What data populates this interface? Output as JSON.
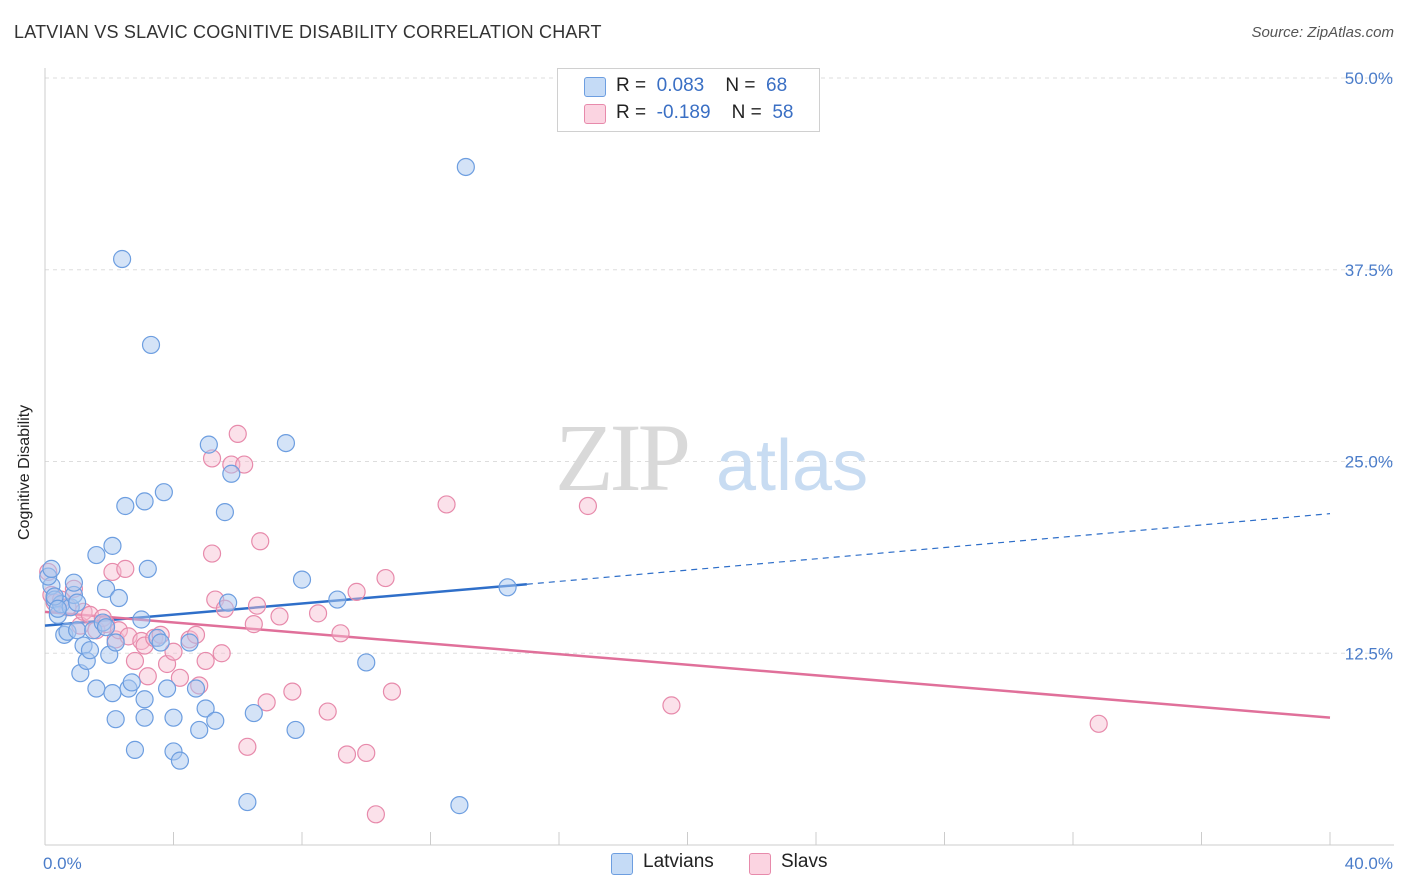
{
  "header": {
    "title": "LATVIAN VS SLAVIC COGNITIVE DISABILITY CORRELATION CHART",
    "source": "Source: ZipAtlas.com"
  },
  "watermark": {
    "zip": "ZIP",
    "atlas": "atlas"
  },
  "legend": {
    "rows": [
      {
        "r_label": "R =",
        "r_value": "0.083",
        "n_label": "N =",
        "n_value": "68",
        "color": "#a9c7f0"
      },
      {
        "r_label": "R =",
        "r_value": "-0.189",
        "n_label": "N =",
        "n_value": "58",
        "color": "#f6bcd0"
      }
    ]
  },
  "bottom_legend": {
    "series1": "Latvians",
    "series2": "Slavs"
  },
  "colors": {
    "latvians_fill": "#a9c7f0",
    "latvians_stroke": "#6d9ee0",
    "latvians_line": "#2f6fc9",
    "slavs_fill": "#f6bcd0",
    "slavs_stroke": "#e78aab",
    "slavs_line": "#e0709a",
    "tick_text": "#4a7cc9",
    "grid": "#dddddd"
  },
  "chart_data": {
    "type": "scatter",
    "title": "LATVIAN VS SLAVIC COGNITIVE DISABILITY CORRELATION CHART",
    "xlabel": "",
    "ylabel": "Cognitive Disability",
    "xlim": [
      0,
      40
    ],
    "ylim": [
      0,
      50
    ],
    "x_ticks": [
      "0.0%",
      "40.0%"
    ],
    "y_ticks": [
      {
        "value": 12.5,
        "label": "12.5%"
      },
      {
        "value": 25.0,
        "label": "25.0%"
      },
      {
        "value": 37.5,
        "label": "37.5%"
      },
      {
        "value": 50.0,
        "label": "50.0%"
      }
    ],
    "grid": true,
    "legend_position": "top-center",
    "series": [
      {
        "name": "Latvians",
        "trend": {
          "x": [
            0,
            15
          ],
          "y": [
            14.3,
            17.0
          ],
          "extended_to": [
            40,
            21.6
          ]
        },
        "points": [
          [
            0.2,
            16.9
          ],
          [
            0.3,
            16.0
          ],
          [
            0.4,
            15.0
          ],
          [
            0.5,
            15.7
          ],
          [
            0.6,
            13.7
          ],
          [
            0.7,
            13.9
          ],
          [
            0.8,
            15.5
          ],
          [
            0.9,
            16.3
          ],
          [
            0.9,
            17.1
          ],
          [
            1.0,
            14.0
          ],
          [
            1.0,
            15.8
          ],
          [
            1.1,
            11.2
          ],
          [
            1.2,
            13.0
          ],
          [
            1.3,
            12.0
          ],
          [
            1.4,
            12.7
          ],
          [
            1.5,
            14.0
          ],
          [
            1.6,
            18.9
          ],
          [
            1.6,
            10.2
          ],
          [
            1.8,
            14.5
          ],
          [
            1.9,
            14.2
          ],
          [
            1.9,
            16.7
          ],
          [
            2.0,
            12.4
          ],
          [
            2.1,
            19.5
          ],
          [
            2.1,
            9.9
          ],
          [
            2.2,
            13.2
          ],
          [
            2.2,
            8.2
          ],
          [
            2.3,
            16.1
          ],
          [
            2.4,
            38.2
          ],
          [
            2.5,
            22.1
          ],
          [
            2.6,
            10.2
          ],
          [
            2.7,
            10.6
          ],
          [
            2.8,
            6.2
          ],
          [
            3.0,
            14.7
          ],
          [
            3.1,
            22.4
          ],
          [
            3.1,
            8.3
          ],
          [
            3.1,
            9.5
          ],
          [
            3.2,
            18.0
          ],
          [
            3.3,
            32.6
          ],
          [
            3.5,
            13.5
          ],
          [
            3.6,
            13.2
          ],
          [
            3.7,
            23.0
          ],
          [
            3.8,
            10.2
          ],
          [
            4.0,
            8.3
          ],
          [
            4.0,
            6.1
          ],
          [
            4.2,
            5.5
          ],
          [
            4.5,
            13.2
          ],
          [
            4.7,
            10.2
          ],
          [
            4.8,
            7.5
          ],
          [
            5.0,
            8.9
          ],
          [
            5.1,
            26.1
          ],
          [
            5.3,
            8.1
          ],
          [
            5.6,
            21.7
          ],
          [
            5.7,
            15.8
          ],
          [
            5.8,
            24.2
          ],
          [
            6.3,
            2.8
          ],
          [
            6.5,
            8.6
          ],
          [
            7.5,
            26.2
          ],
          [
            7.8,
            7.5
          ],
          [
            8.0,
            17.3
          ],
          [
            9.1,
            16.0
          ],
          [
            10.0,
            11.9
          ],
          [
            12.9,
            2.6
          ],
          [
            13.1,
            44.2
          ],
          [
            14.4,
            16.8
          ],
          [
            0.1,
            17.5
          ],
          [
            0.2,
            18.0
          ],
          [
            0.3,
            16.2
          ],
          [
            0.4,
            15.4
          ]
        ]
      },
      {
        "name": "Slavs",
        "trend": {
          "x": [
            0,
            40
          ],
          "y": [
            15.2,
            8.3
          ]
        },
        "points": [
          [
            0.2,
            16.3
          ],
          [
            0.3,
            15.8
          ],
          [
            0.5,
            16.0
          ],
          [
            0.7,
            15.5
          ],
          [
            0.9,
            16.7
          ],
          [
            1.1,
            14.3
          ],
          [
            1.2,
            15.2
          ],
          [
            1.4,
            15.0
          ],
          [
            1.6,
            14.0
          ],
          [
            1.8,
            14.8
          ],
          [
            1.9,
            14.4
          ],
          [
            2.1,
            17.8
          ],
          [
            2.2,
            13.4
          ],
          [
            2.3,
            14.0
          ],
          [
            2.5,
            18.0
          ],
          [
            2.6,
            13.6
          ],
          [
            2.8,
            12.0
          ],
          [
            3.0,
            13.3
          ],
          [
            3.1,
            13.0
          ],
          [
            3.2,
            11.0
          ],
          [
            3.4,
            13.5
          ],
          [
            3.6,
            13.7
          ],
          [
            3.8,
            11.8
          ],
          [
            4.0,
            12.6
          ],
          [
            4.2,
            10.9
          ],
          [
            4.5,
            13.4
          ],
          [
            4.7,
            13.7
          ],
          [
            4.8,
            10.4
          ],
          [
            5.0,
            12.0
          ],
          [
            5.2,
            19.0
          ],
          [
            5.3,
            16.0
          ],
          [
            5.5,
            12.5
          ],
          [
            5.6,
            15.4
          ],
          [
            5.8,
            24.8
          ],
          [
            6.0,
            26.8
          ],
          [
            6.2,
            24.8
          ],
          [
            6.3,
            6.4
          ],
          [
            6.5,
            14.4
          ],
          [
            6.6,
            15.6
          ],
          [
            6.7,
            19.8
          ],
          [
            6.9,
            9.3
          ],
          [
            7.3,
            14.9
          ],
          [
            7.7,
            10.0
          ],
          [
            8.5,
            15.1
          ],
          [
            8.8,
            8.7
          ],
          [
            9.2,
            13.8
          ],
          [
            9.4,
            5.9
          ],
          [
            9.7,
            16.5
          ],
          [
            10.0,
            6.0
          ],
          [
            10.3,
            2.0
          ],
          [
            10.6,
            17.4
          ],
          [
            10.8,
            10.0
          ],
          [
            12.5,
            22.2
          ],
          [
            16.9,
            22.1
          ],
          [
            19.5,
            9.1
          ],
          [
            32.8,
            7.9
          ],
          [
            0.1,
            17.8
          ],
          [
            5.2,
            25.2
          ]
        ]
      }
    ]
  }
}
